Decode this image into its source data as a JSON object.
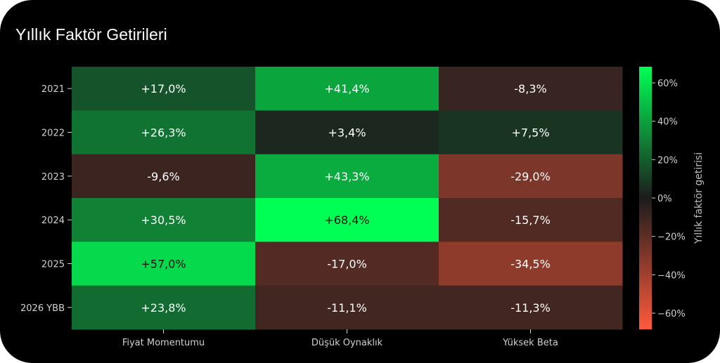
{
  "title": "Yıllık Faktör Getirileri",
  "chart_data": {
    "type": "heatmap",
    "title": "Yıllık Faktör Getirileri",
    "columns": [
      "Fiyat Momentumu",
      "Düşük Oynaklık",
      "Yüksek Beta"
    ],
    "rows": [
      "2021",
      "2022",
      "2023",
      "2024",
      "2025",
      "2026 YBB"
    ],
    "values": [
      [
        17.0,
        41.4,
        -8.3
      ],
      [
        26.3,
        3.4,
        7.5
      ],
      [
        -9.6,
        43.3,
        -29.0
      ],
      [
        30.5,
        68.4,
        -15.7
      ],
      [
        57.0,
        -17.0,
        -34.5
      ],
      [
        23.8,
        -11.1,
        -11.3
      ]
    ],
    "labels": [
      [
        "+17,0%",
        "+41,4%",
        "-8,3%"
      ],
      [
        "+26,3%",
        "+3,4%",
        "+7,5%"
      ],
      [
        "-9,6%",
        "+43,3%",
        "-29,0%"
      ],
      [
        "+30,5%",
        "+68,4%",
        "-15,7%"
      ],
      [
        "+57,0%",
        "-17,0%",
        "-34,5%"
      ],
      [
        "+23,8%",
        "-11,1%",
        "-11,3%"
      ]
    ],
    "colorbar": {
      "label": "Yıllık faktör getirisi",
      "range": [
        -68.4,
        68.4
      ],
      "ticks": [
        60,
        40,
        20,
        0,
        -20,
        -40,
        -60
      ],
      "tick_labels": [
        "60%",
        "40%",
        "20%",
        "0%",
        "−20%",
        "−40%",
        "−60%"
      ],
      "colors": {
        "negative": "#ff5a3c",
        "zero": "#1c1c1c",
        "positive": "#00ff55"
      }
    }
  }
}
